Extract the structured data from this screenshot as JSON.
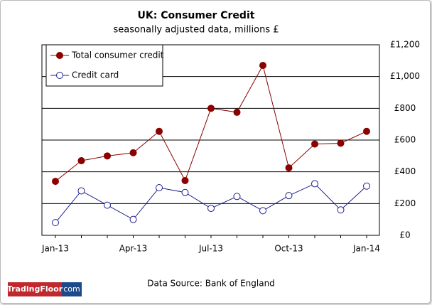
{
  "chart_data": {
    "type": "line",
    "title": "UK: Consumer Credit",
    "subtitle": "seasonally adjusted data, millions £",
    "categories": [
      "Jan-13",
      null,
      null,
      "Apr-13",
      null,
      null,
      "Jul-13",
      null,
      null,
      "Oct-13",
      null,
      null,
      "Jan-14"
    ],
    "series": [
      {
        "name": "Total consumer credit",
        "color": "#8b0000",
        "filled": true,
        "values": [
          340,
          470,
          500,
          520,
          655,
          345,
          800,
          775,
          1070,
          425,
          575,
          580,
          655
        ]
      },
      {
        "name": "Credit card",
        "color": "#1f1f8f",
        "filled": false,
        "values": [
          80,
          280,
          190,
          100,
          300,
          270,
          170,
          245,
          155,
          250,
          325,
          160,
          310
        ]
      }
    ],
    "ylim": [
      0,
      1200
    ],
    "yticks": [
      {
        "value": 0,
        "label": "£0"
      },
      {
        "value": 200,
        "label": "£200"
      },
      {
        "value": 400,
        "label": "£400"
      },
      {
        "value": 600,
        "label": "£600"
      },
      {
        "value": 800,
        "label": "£800"
      },
      {
        "value": 1000,
        "label": "£1,000"
      },
      {
        "value": 1200,
        "label": "£1,200"
      }
    ],
    "grid": true,
    "legend": "top-left",
    "source": "Data Source: Bank of England"
  },
  "logo": {
    "brand": "TradingFloor",
    "suffix": "com"
  }
}
